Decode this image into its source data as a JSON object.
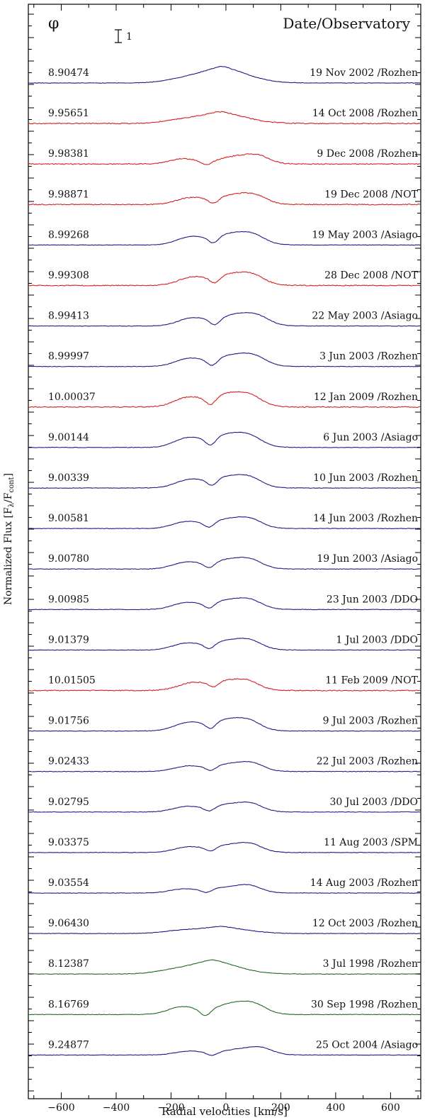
{
  "chart_data": {
    "type": "line",
    "title": "",
    "xlabel": "Radial velocities [km/s]",
    "ylabel": "Normalized Flux [Fλ/Fcont]",
    "ylabel_parts": {
      "main": "Normalized Flux [F",
      "sub1": "λ",
      "mid": "/F",
      "sub2": "cont",
      "end": "]"
    },
    "xlim": [
      -720,
      710
    ],
    "xticks": [
      -600,
      -400,
      -200,
      0,
      200,
      400,
      600
    ],
    "xtick_labels": [
      "−600",
      "−400",
      "−200",
      "0",
      "200",
      "400",
      "600"
    ],
    "phase_header": "φ",
    "date_header": "Date/Observatory",
    "scale_bar_label": "1",
    "colors": {
      "blue": "#1c1c8a",
      "red": "#d42020",
      "green": "#1f6b1f",
      "axis": "#000000"
    },
    "series": [
      {
        "phase": "8.90474",
        "date": "19 Nov 2002 /Rozhen",
        "color": "blue",
        "profile": "single",
        "peak": 1.35,
        "center": -15
      },
      {
        "phase": "9.95651",
        "date": "14 Oct 2008 /Rozhen",
        "color": "red",
        "profile": "single",
        "peak": 1.25,
        "center": -20
      },
      {
        "phase": "9.98381",
        "date": "9 Dec 2008 /Rozhen",
        "color": "red",
        "profile": "double",
        "peak": 1.2,
        "absorption_center": -70,
        "red_peak": 30
      },
      {
        "phase": "9.98871",
        "date": "19 Dec 2008 /NOT",
        "color": "red",
        "profile": "double",
        "peak": 1.25,
        "absorption_center": -45,
        "red_peak": 20
      },
      {
        "phase": "8.99268",
        "date": "19 May 2003 /Asiago",
        "color": "blue",
        "profile": "double",
        "peak": 1.3,
        "absorption_center": -45,
        "red_peak": 15
      },
      {
        "phase": "9.99308",
        "date": "28 Dec 2008 /NOT",
        "color": "red",
        "profile": "double",
        "peak": 1.3,
        "absorption_center": -40,
        "red_peak": 15
      },
      {
        "phase": "8.99413",
        "date": "22 May 2003 /Asiago",
        "color": "blue",
        "profile": "double",
        "peak": 1.3,
        "absorption_center": -40,
        "red_peak": 30
      },
      {
        "phase": "8.99997",
        "date": "3 Jun 2003 /Rozhen",
        "color": "blue",
        "profile": "double",
        "peak": 1.3,
        "absorption_center": -50,
        "red_peak": 20
      },
      {
        "phase": "10.00037",
        "date": "12 Jan 2009 /Rozhen",
        "color": "red",
        "profile": "double",
        "peak": 1.35,
        "absorption_center": -55,
        "red_peak": 5
      },
      {
        "phase": "9.00144",
        "date": "6 Jun 2003 /Asiago",
        "color": "blue",
        "profile": "double",
        "peak": 1.35,
        "absorption_center": -55,
        "red_peak": 5
      },
      {
        "phase": "9.00339",
        "date": "10 Jun 2003 /Rozhen",
        "color": "blue",
        "profile": "double",
        "peak": 1.3,
        "absorption_center": -50,
        "red_peak": 5
      },
      {
        "phase": "9.00581",
        "date": "14 Jun 2003 /Rozhen",
        "color": "blue",
        "profile": "double",
        "peak": 1.25,
        "absorption_center": -60,
        "red_peak": 5
      },
      {
        "phase": "9.00780",
        "date": "19 Jun 2003 /Asiago",
        "color": "blue",
        "profile": "double",
        "peak": 1.25,
        "absorption_center": -60,
        "red_peak": 5
      },
      {
        "phase": "9.00985",
        "date": "23 Jun 2003 /DDO",
        "color": "blue",
        "profile": "double",
        "peak": 1.25,
        "absorption_center": -60,
        "red_peak": 5
      },
      {
        "phase": "9.01379",
        "date": "1 Jul 2003 /DDO",
        "color": "blue",
        "profile": "double",
        "peak": 1.25,
        "absorption_center": -60,
        "red_peak": 5
      },
      {
        "phase": "10.01505",
        "date": "11 Feb 2009 /NOT",
        "color": "red",
        "profile": "double",
        "peak": 1.25,
        "absorption_center": -45,
        "red_peak": -5
      },
      {
        "phase": "9.01756",
        "date": "9 Jul 2003 /Rozhen",
        "color": "blue",
        "profile": "double",
        "peak": 1.3,
        "absorption_center": -55,
        "red_peak": 0
      },
      {
        "phase": "9.02433",
        "date": "22 Jul 2003 /Rozhen",
        "color": "blue",
        "profile": "double",
        "peak": 1.2,
        "absorption_center": -55,
        "red_peak": 10
      },
      {
        "phase": "9.02795",
        "date": "30 Jul 2003 /DDO",
        "color": "blue",
        "profile": "double",
        "peak": 1.2,
        "absorption_center": -60,
        "red_peak": 5
      },
      {
        "phase": "9.03375",
        "date": "11 Aug 2003 /SPM",
        "color": "blue",
        "profile": "double",
        "peak": 1.2,
        "absorption_center": -55,
        "red_peak": 5
      },
      {
        "phase": "9.03554",
        "date": "14 Aug 2003 /Rozhen",
        "color": "blue",
        "profile": "double",
        "peak": 1.15,
        "absorption_center": -70,
        "red_peak": 0
      },
      {
        "phase": "9.06430",
        "date": "12 Oct 2003 /Rozhen",
        "color": "blue",
        "profile": "single",
        "peak": 1.15,
        "center": -20
      },
      {
        "phase": "8.12387",
        "date": "3 Jul 1998 /Rozhen",
        "color": "green",
        "profile": "single",
        "peak": 1.3,
        "center": -50
      },
      {
        "phase": "8.16769",
        "date": "30 Sep 1998 /Rozhen",
        "color": "green",
        "profile": "double",
        "peak": 1.3,
        "absorption_center": -75,
        "red_peak": 20
      },
      {
        "phase": "9.24877",
        "date": "25 Oct 2004 /Asiago",
        "color": "blue",
        "profile": "double",
        "peak": 1.15,
        "absorption_center": -50,
        "red_peak": 40
      }
    ]
  }
}
